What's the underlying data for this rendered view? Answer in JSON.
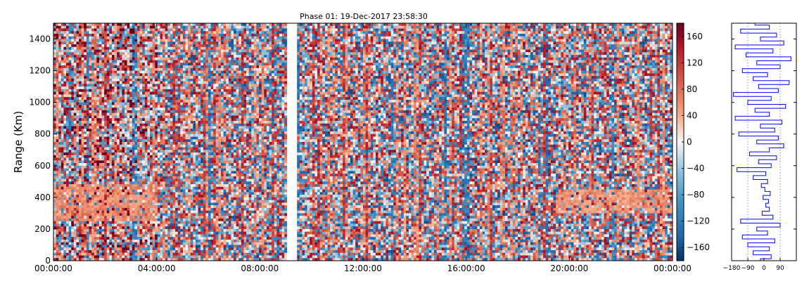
{
  "chart_data": [
    {
      "type": "heatmap",
      "title": "Phase 01: 19-Dec-2017 23:58:30",
      "xlabel": "",
      "ylabel": "Range (Km)",
      "x_ticks": [
        "00:00:00",
        "04:00:00",
        "08:00:00",
        "12:00:00",
        "16:00:00",
        "20:00:00",
        "00:00:00"
      ],
      "x_range_hours": [
        0,
        24
      ],
      "y_ticks": [
        0,
        200,
        400,
        600,
        800,
        1000,
        1200,
        1400
      ],
      "ylim": [
        0,
        1500
      ],
      "gap_hours": [
        9.0,
        9.45
      ],
      "colormap": "RdBu_r",
      "colorbar": {
        "ticks": [
          160,
          120,
          80,
          40,
          0,
          -40,
          -80,
          -120,
          -160
        ],
        "vmin": -180,
        "vmax": 180
      },
      "bands": [
        {
          "range_km": [
            250,
            480
          ],
          "x_hours": [
            0,
            4
          ],
          "value": 60
        },
        {
          "range_km": [
            300,
            450
          ],
          "x_hours": [
            19.5,
            24
          ],
          "value": 55
        }
      ]
    },
    {
      "type": "line",
      "title": "",
      "xlabel": "",
      "ylabel": "",
      "x_ticks": [
        "−180",
        "−90",
        "0",
        "90"
      ],
      "xlim": [
        -180,
        180
      ],
      "ylim": [
        0,
        1500
      ],
      "orientation": "vertical",
      "color": "#0000ff",
      "series": [
        {
          "points": [
            [
              -20,
              0
            ],
            [
              40,
              25
            ],
            [
              -60,
              50
            ],
            [
              30,
              75
            ],
            [
              -90,
              100
            ],
            [
              60,
              125
            ],
            [
              -120,
              150
            ],
            [
              20,
              175
            ],
            [
              -40,
              200
            ],
            [
              90,
              225
            ],
            [
              -130,
              250
            ],
            [
              50,
              275
            ],
            [
              -10,
              300
            ],
            [
              30,
              325
            ],
            [
              10,
              350
            ],
            [
              25,
              375
            ],
            [
              -5,
              400
            ],
            [
              35,
              425
            ],
            [
              5,
              450
            ],
            [
              -15,
              475
            ],
            [
              20,
              500
            ],
            [
              -60,
              525
            ],
            [
              10,
              550
            ],
            [
              -150,
              575
            ],
            [
              40,
              600
            ],
            [
              -30,
              625
            ],
            [
              70,
              650
            ],
            [
              -80,
              675
            ],
            [
              30,
              700
            ],
            [
              110,
              725
            ],
            [
              -40,
              750
            ],
            [
              80,
              775
            ],
            [
              -140,
              800
            ],
            [
              60,
              825
            ],
            [
              -20,
              850
            ],
            [
              100,
              875
            ],
            [
              -160,
              900
            ],
            [
              30,
              925
            ],
            [
              -50,
              950
            ],
            [
              120,
              975
            ],
            [
              -90,
              1000
            ],
            [
              40,
              1025
            ],
            [
              -170,
              1050
            ],
            [
              80,
              1075
            ],
            [
              -30,
              1100
            ],
            [
              140,
              1125
            ],
            [
              -60,
              1150
            ],
            [
              20,
              1175
            ],
            [
              -120,
              1200
            ],
            [
              90,
              1225
            ],
            [
              -40,
              1250
            ],
            [
              150,
              1275
            ],
            [
              -100,
              1300
            ],
            [
              50,
              1325
            ],
            [
              -160,
              1350
            ],
            [
              110,
              1375
            ],
            [
              -20,
              1400
            ],
            [
              70,
              1425
            ],
            [
              -130,
              1450
            ],
            [
              30,
              1475
            ],
            [
              -50,
              1500
            ]
          ]
        }
      ]
    }
  ]
}
